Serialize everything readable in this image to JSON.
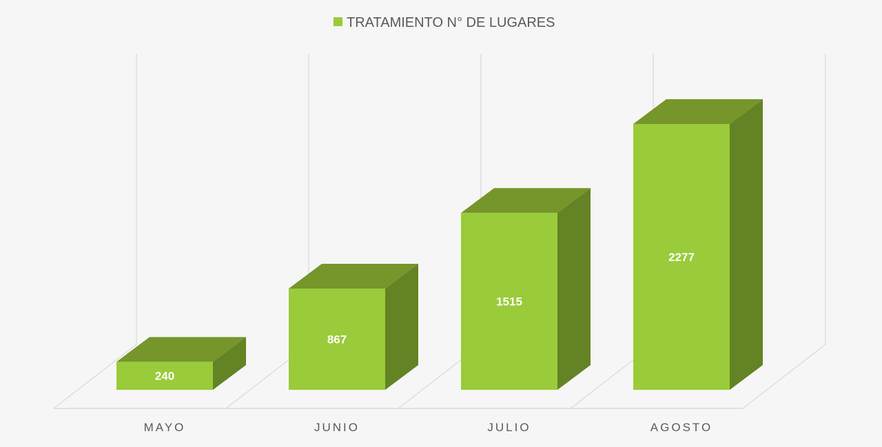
{
  "chart_data": {
    "type": "bar",
    "subtype": "3d-column",
    "title": "",
    "categories": [
      "MAYO",
      "JUNIO",
      "JULIO",
      "AGOSTO"
    ],
    "series": [
      {
        "name": "TRATAMIENTO N° DE LUGARES",
        "values": [
          240,
          867,
          1515,
          2277
        ],
        "color": "#9acb3a"
      }
    ],
    "data_labels": [
      "240",
      "867",
      "1515",
      "2277"
    ],
    "ylim": [
      0,
      2500
    ],
    "grid": true,
    "legend_position": "top-center",
    "xlabel": "",
    "ylabel": ""
  },
  "colors": {
    "front": "#9acb3a",
    "top": "#76962b",
    "side": "#638324",
    "grid": "#d9d9d9"
  }
}
